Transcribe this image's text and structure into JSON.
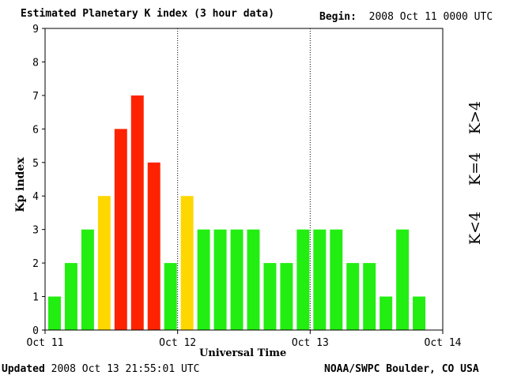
{
  "header": {
    "title": "Estimated Planetary K index (3 hour data)",
    "begin_label": "Begin:",
    "begin_value": "2008 Oct 11 0000 UTC"
  },
  "footer": {
    "updated_label": "Updated",
    "updated_value": "2008 Oct 13 21:55:01 UTC",
    "credit": "NOAA/SWPC Boulder, CO USA"
  },
  "legend": {
    "above": "K>4",
    "equal": "K=4",
    "below": "K<4"
  },
  "colors": {
    "above": "#ff2200",
    "equal": "#ffd700",
    "below": "#22ee11"
  },
  "chart_data": {
    "type": "bar",
    "title": "Estimated Planetary K index (3 hour data)",
    "xlabel": "Universal Time",
    "ylabel": "Kp index",
    "ylim": [
      0,
      9
    ],
    "yticks": [
      0,
      1,
      2,
      3,
      4,
      5,
      6,
      7,
      8,
      9
    ],
    "xticks": [
      "Oct 11",
      "Oct 12",
      "Oct 13",
      "Oct 14"
    ],
    "day_separators": [
      "Oct 12",
      "Oct 13"
    ],
    "grid": false,
    "legend_position": "right",
    "interval_hours": 3,
    "values": [
      1,
      2,
      3,
      4,
      6,
      7,
      5,
      2,
      4,
      3,
      3,
      3,
      3,
      2,
      2,
      3,
      3,
      3,
      2,
      2,
      1,
      3,
      1
    ]
  }
}
